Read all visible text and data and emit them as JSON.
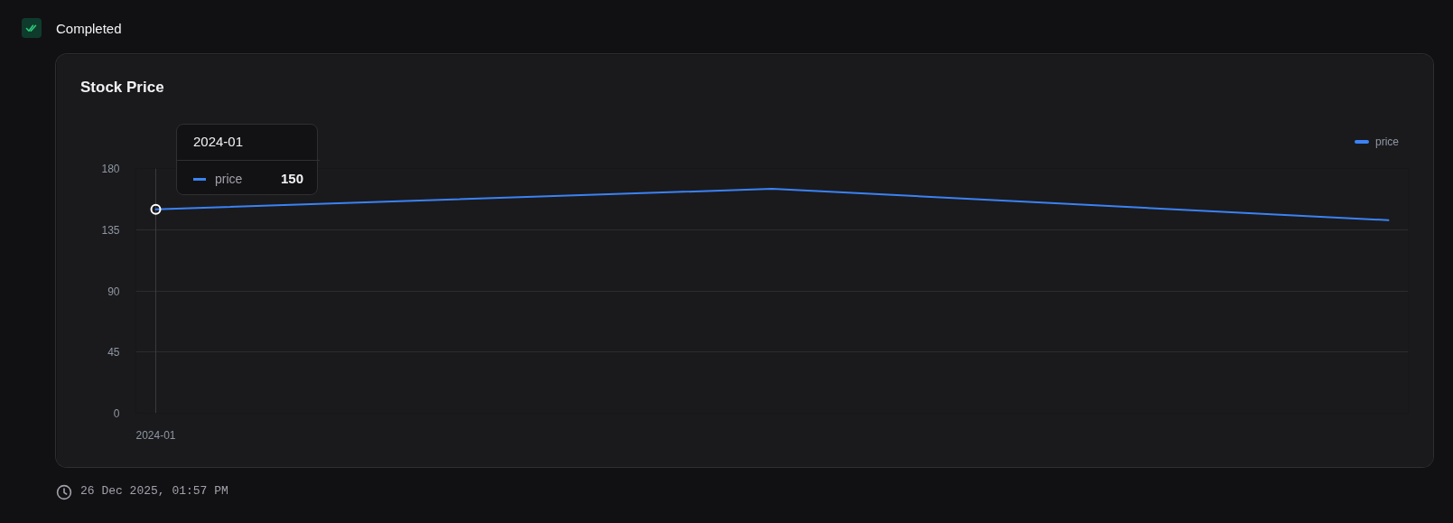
{
  "chart_data": {
    "type": "line",
    "title": "Stock Price",
    "categories": [
      "2024-01",
      null,
      null
    ],
    "series": [
      {
        "name": "price",
        "color": "#3b82f6",
        "values": [
          150,
          165,
          142
        ]
      },
      {
        "type": "scatter",
        "values": [
          150,
          null,
          null
        ],
        "color": "#ffffff",
        "marker": "circle"
      }
    ],
    "ylim": [
      0,
      180
    ],
    "yticks": [
      0,
      45,
      90,
      135,
      180
    ],
    "grid": "y",
    "legend": "top right",
    "annotations": [
      "Completed",
      "26 Dec 2025, 01:57 PM",
      "2024-01",
      "150"
    ]
  }
}
